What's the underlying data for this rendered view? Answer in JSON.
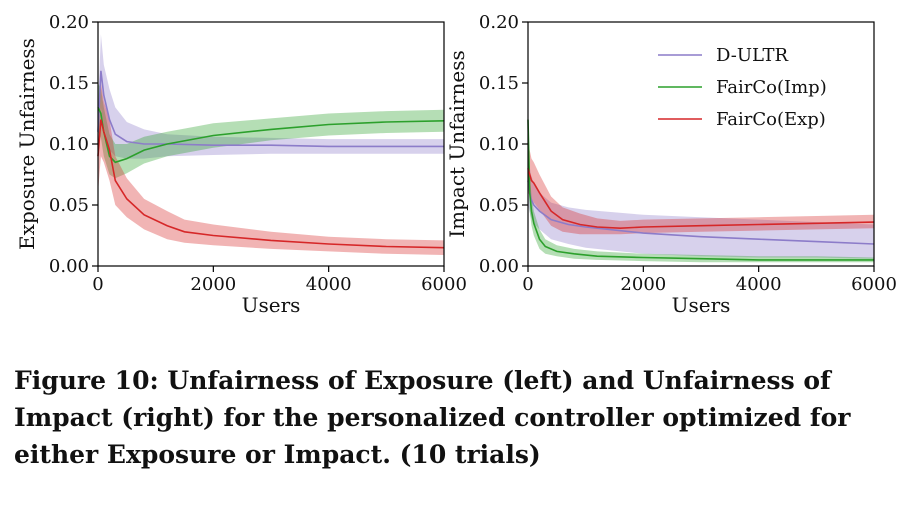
{
  "chart_data": [
    {
      "type": "line",
      "title": "",
      "xlabel": "Users",
      "ylabel": "Exposure Unfairness",
      "xlim": [
        0,
        6000
      ],
      "ylim": [
        0,
        0.2
      ],
      "xticks": [
        0,
        2000,
        4000,
        6000
      ],
      "xtick_labels": [
        "0",
        "2000",
        "4000",
        "6000"
      ],
      "yticks": [
        0,
        0.05,
        0.1,
        0.15,
        0.2
      ],
      "ytick_labels": [
        "0.00",
        "0.05",
        "0.10",
        "0.15",
        "0.20"
      ],
      "grid": false,
      "legend": null,
      "series": [
        {
          "name": "D-ULTR",
          "color": "#8c7cc9",
          "x": [
            0,
            50,
            100,
            200,
            300,
            500,
            800,
            1200,
            2000,
            3000,
            4000,
            5000,
            6000
          ],
          "y": [
            0.11,
            0.16,
            0.14,
            0.12,
            0.108,
            0.102,
            0.1,
            0.1,
            0.099,
            0.099,
            0.098,
            0.098,
            0.098
          ],
          "lower": [
            0.09,
            0.13,
            0.115,
            0.095,
            0.09,
            0.088,
            0.088,
            0.09,
            0.091,
            0.092,
            0.092,
            0.092,
            0.092
          ],
          "upper": [
            0.13,
            0.19,
            0.165,
            0.145,
            0.13,
            0.118,
            0.112,
            0.108,
            0.106,
            0.105,
            0.104,
            0.104,
            0.104
          ]
        },
        {
          "name": "FairCo(Imp)",
          "color": "#2ca02c",
          "x": [
            0,
            50,
            100,
            200,
            300,
            500,
            800,
            1200,
            2000,
            3000,
            4000,
            5000,
            6000
          ],
          "y": [
            0.13,
            0.125,
            0.11,
            0.09,
            0.085,
            0.088,
            0.095,
            0.1,
            0.107,
            0.112,
            0.116,
            0.118,
            0.119
          ],
          "lower": [
            0.11,
            0.105,
            0.09,
            0.075,
            0.072,
            0.076,
            0.084,
            0.09,
            0.097,
            0.103,
            0.107,
            0.109,
            0.11
          ],
          "upper": [
            0.15,
            0.145,
            0.13,
            0.108,
            0.1,
            0.1,
            0.106,
            0.11,
            0.117,
            0.121,
            0.125,
            0.127,
            0.128
          ]
        },
        {
          "name": "FairCo(Exp)",
          "color": "#d62728",
          "x": [
            0,
            50,
            100,
            200,
            300,
            500,
            800,
            1200,
            1500,
            2000,
            3000,
            4000,
            5000,
            6000
          ],
          "y": [
            0.09,
            0.12,
            0.11,
            0.095,
            0.07,
            0.055,
            0.042,
            0.033,
            0.028,
            0.025,
            0.021,
            0.018,
            0.016,
            0.015
          ],
          "lower": [
            0.06,
            0.09,
            0.085,
            0.07,
            0.05,
            0.04,
            0.03,
            0.022,
            0.019,
            0.017,
            0.014,
            0.012,
            0.01,
            0.009
          ],
          "upper": [
            0.12,
            0.15,
            0.135,
            0.12,
            0.09,
            0.072,
            0.055,
            0.045,
            0.038,
            0.034,
            0.028,
            0.024,
            0.022,
            0.021
          ]
        }
      ]
    },
    {
      "type": "line",
      "title": "",
      "xlabel": "Users",
      "ylabel": "Impact Unfairness",
      "xlim": [
        0,
        6000
      ],
      "ylim": [
        0,
        0.2
      ],
      "xticks": [
        0,
        2000,
        4000,
        6000
      ],
      "xtick_labels": [
        "0",
        "2000",
        "4000",
        "6000"
      ],
      "yticks": [
        0,
        0.05,
        0.1,
        0.15,
        0.2
      ],
      "ytick_labels": [
        "0.00",
        "0.05",
        "0.10",
        "0.15",
        "0.20"
      ],
      "grid": false,
      "legend": "top-right",
      "series": [
        {
          "name": "D-ULTR",
          "color": "#8c7cc9",
          "x": [
            0,
            50,
            100,
            200,
            400,
            700,
            1000,
            2000,
            3000,
            4000,
            5000,
            6000
          ],
          "y": [
            0.07,
            0.055,
            0.05,
            0.045,
            0.038,
            0.034,
            0.032,
            0.027,
            0.024,
            0.022,
            0.02,
            0.018
          ],
          "lower": [
            0.05,
            0.04,
            0.035,
            0.03,
            0.022,
            0.018,
            0.015,
            0.01,
            0.008,
            0.007,
            0.007,
            0.006
          ],
          "upper": [
            0.09,
            0.075,
            0.068,
            0.06,
            0.052,
            0.048,
            0.046,
            0.042,
            0.04,
            0.038,
            0.036,
            0.034
          ]
        },
        {
          "name": "FairCo(Imp)",
          "color": "#2ca02c",
          "x": [
            0,
            30,
            60,
            100,
            200,
            300,
            500,
            800,
            1200,
            2000,
            3000,
            4000,
            5000,
            6000
          ],
          "y": [
            0.12,
            0.06,
            0.045,
            0.035,
            0.022,
            0.016,
            0.012,
            0.01,
            0.008,
            0.007,
            0.006,
            0.005,
            0.005,
            0.005
          ],
          "lower": [
            0.1,
            0.045,
            0.033,
            0.025,
            0.014,
            0.01,
            0.008,
            0.006,
            0.005,
            0.004,
            0.003,
            0.003,
            0.003,
            0.003
          ],
          "upper": [
            0.14,
            0.075,
            0.058,
            0.045,
            0.03,
            0.022,
            0.017,
            0.014,
            0.012,
            0.01,
            0.009,
            0.008,
            0.008,
            0.007
          ]
        },
        {
          "name": "FairCo(Exp)",
          "color": "#d62728",
          "x": [
            0,
            30,
            60,
            100,
            200,
            400,
            600,
            900,
            1200,
            1600,
            2000,
            3000,
            4000,
            5000,
            6000
          ],
          "y": [
            0.08,
            0.075,
            0.07,
            0.068,
            0.06,
            0.045,
            0.038,
            0.034,
            0.032,
            0.031,
            0.032,
            0.033,
            0.034,
            0.035,
            0.036
          ],
          "lower": [
            0.06,
            0.058,
            0.055,
            0.052,
            0.046,
            0.033,
            0.028,
            0.026,
            0.026,
            0.026,
            0.027,
            0.028,
            0.029,
            0.03,
            0.031
          ],
          "upper": [
            0.105,
            0.095,
            0.088,
            0.085,
            0.075,
            0.057,
            0.048,
            0.043,
            0.039,
            0.037,
            0.038,
            0.039,
            0.04,
            0.041,
            0.042
          ]
        }
      ]
    }
  ],
  "caption": "Figure 10: Unfairness of Exposure (left) and Unfairness of Impact (right) for the personalized controller optimized for either Exposure or Impact. (10 trials)"
}
